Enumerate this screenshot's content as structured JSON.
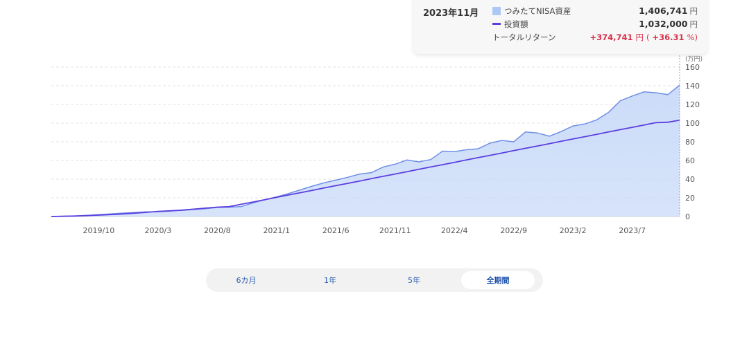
{
  "tooltip": {
    "date": "2023年11月",
    "asset_label": "つみたてNISA資産",
    "asset_value": "1,406,741",
    "invest_label": "投資額",
    "invest_value": "1,032,000",
    "return_label": "トータルリターン",
    "return_value": "+374,741",
    "return_pct": "+36.31",
    "yen_unit": "円",
    "pct_unit": "%",
    "paren_open": "(",
    "paren_close": ")"
  },
  "tabs": [
    {
      "label": "6カ月",
      "active": false
    },
    {
      "label": "1年",
      "active": false
    },
    {
      "label": "5年",
      "active": false
    },
    {
      "label": "全期間",
      "active": true
    }
  ],
  "colors": {
    "area_fill": "#c9daf8",
    "area_line": "#6f8fe6",
    "invest_line": "#5a3fe0",
    "grid": "#e3e3e3",
    "return": "#d9304a"
  },
  "chart_data": {
    "type": "area",
    "y_unit_label": "(万円)",
    "ylim": [
      0,
      160
    ],
    "y_ticks": [
      0,
      20,
      40,
      60,
      80,
      100,
      120,
      140,
      160
    ],
    "x_tick_labels": [
      "2019/10",
      "2020/3",
      "2020/8",
      "2021/1",
      "2021/6",
      "2021/11",
      "2022/4",
      "2022/9",
      "2023/2",
      "2023/7"
    ],
    "grid": true,
    "x": [
      "2019/6",
      "2019/7",
      "2019/8",
      "2019/9",
      "2019/10",
      "2019/11",
      "2019/12",
      "2020/1",
      "2020/2",
      "2020/3",
      "2020/4",
      "2020/5",
      "2020/6",
      "2020/7",
      "2020/8",
      "2020/9",
      "2020/10",
      "2020/11",
      "2020/12",
      "2021/1",
      "2021/2",
      "2021/3",
      "2021/4",
      "2021/5",
      "2021/6",
      "2021/7",
      "2021/8",
      "2021/9",
      "2021/10",
      "2021/11",
      "2021/12",
      "2022/1",
      "2022/2",
      "2022/3",
      "2022/4",
      "2022/5",
      "2022/6",
      "2022/7",
      "2022/8",
      "2022/9",
      "2022/10",
      "2022/11",
      "2022/12",
      "2023/1",
      "2023/2",
      "2023/3",
      "2023/4",
      "2023/5",
      "2023/6",
      "2023/7",
      "2023/8",
      "2023/9",
      "2023/10",
      "2023/11"
    ],
    "series": [
      {
        "name": "つみたてNISA資産",
        "values": [
          0.0,
          0.3,
          0.6,
          1.2,
          2.0,
          2.8,
          3.6,
          4.3,
          5.0,
          5.1,
          5.8,
          6.6,
          7.4,
          8.3,
          9.6,
          10.0,
          10.5,
          14.5,
          18.0,
          21.0,
          24.5,
          28.5,
          32.5,
          36.0,
          39.0,
          42.0,
          45.5,
          47.0,
          53.0,
          56.0,
          60.5,
          58.5,
          61.0,
          70.0,
          69.5,
          71.5,
          72.5,
          78.5,
          81.5,
          80.0,
          90.5,
          89.5,
          86.0,
          91.0,
          97.0,
          99.0,
          103.5,
          111.5,
          124.0,
          129.0,
          133.5,
          132.5,
          130.5,
          140.7
        ]
      },
      {
        "name": "投資額",
        "values": [
          0.0,
          0.25,
          0.55,
          0.95,
          1.45,
          2.05,
          2.75,
          3.55,
          4.45,
          5.45,
          6.05,
          6.85,
          7.85,
          9.0,
          10.0,
          10.5,
          13.0,
          15.5,
          18.0,
          20.5,
          23.0,
          25.5,
          28.0,
          30.5,
          33.0,
          35.5,
          38.0,
          40.5,
          43.0,
          45.5,
          48.0,
          50.5,
          53.0,
          55.5,
          58.0,
          60.5,
          63.0,
          65.5,
          68.0,
          70.5,
          73.0,
          75.5,
          78.0,
          80.5,
          83.0,
          85.5,
          88.0,
          90.5,
          93.0,
          95.5,
          98.0,
          100.5,
          101.0,
          103.2
        ]
      }
    ]
  }
}
